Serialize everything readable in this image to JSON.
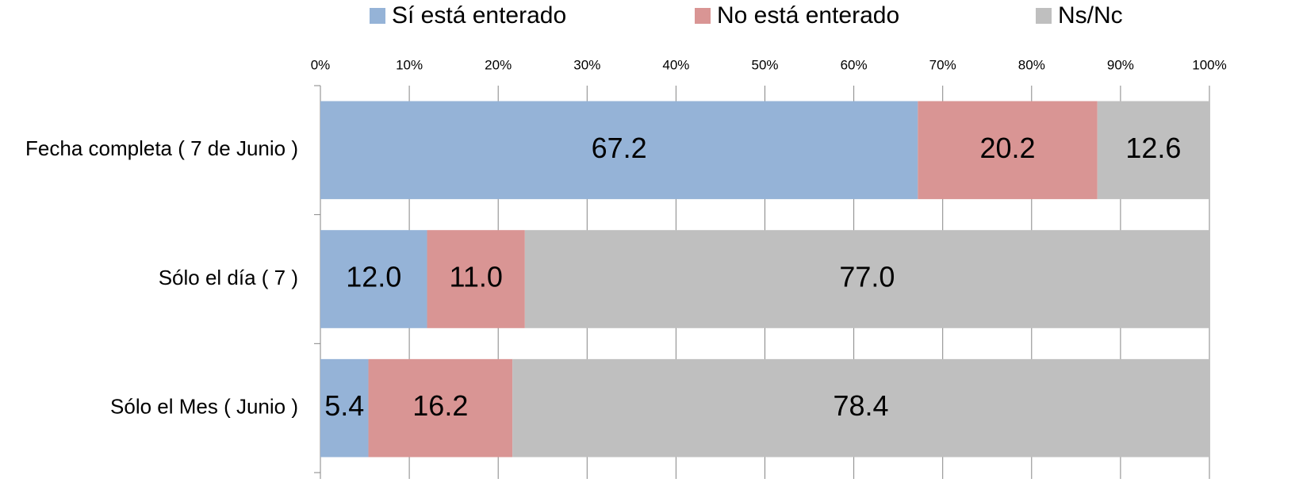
{
  "chart_data": {
    "type": "stacked_bar_horizontal",
    "categories": [
      "Fecha completa ( 7 de Junio )",
      "Sólo el día ( 7 )",
      "Sólo el Mes ( Junio )"
    ],
    "series": [
      {
        "name": "Sí está enterado",
        "color": "#95b3d7",
        "values": [
          67.2,
          12,
          5.4
        ],
        "value_labels": [
          "67.2",
          "12.0",
          "5.4"
        ]
      },
      {
        "name": "No está enterado",
        "color": "#d99594",
        "values": [
          20.2,
          11,
          16.2
        ],
        "value_labels": [
          "20.2",
          "11.0",
          "16.2"
        ]
      },
      {
        "name": "Ns/Nc",
        "color": "#bfbfbf",
        "values": [
          12.6,
          77,
          78.4
        ],
        "value_labels": [
          "12.6",
          "77.0",
          "78.4"
        ]
      }
    ],
    "xlim": [
      0,
      100
    ],
    "xticks": [
      {
        "value": 0,
        "label": "0%"
      },
      {
        "value": 10,
        "label": "10%"
      },
      {
        "value": 20,
        "label": "20%"
      },
      {
        "value": 30,
        "label": "30%"
      },
      {
        "value": 40,
        "label": "40%"
      },
      {
        "value": 50,
        "label": "50%"
      },
      {
        "value": 60,
        "label": "60%"
      },
      {
        "value": 70,
        "label": "70%"
      },
      {
        "value": 80,
        "label": "80%"
      },
      {
        "value": 90,
        "label": "90%"
      },
      {
        "value": 100,
        "label": "100%"
      }
    ],
    "grid": true,
    "legend": "top"
  }
}
